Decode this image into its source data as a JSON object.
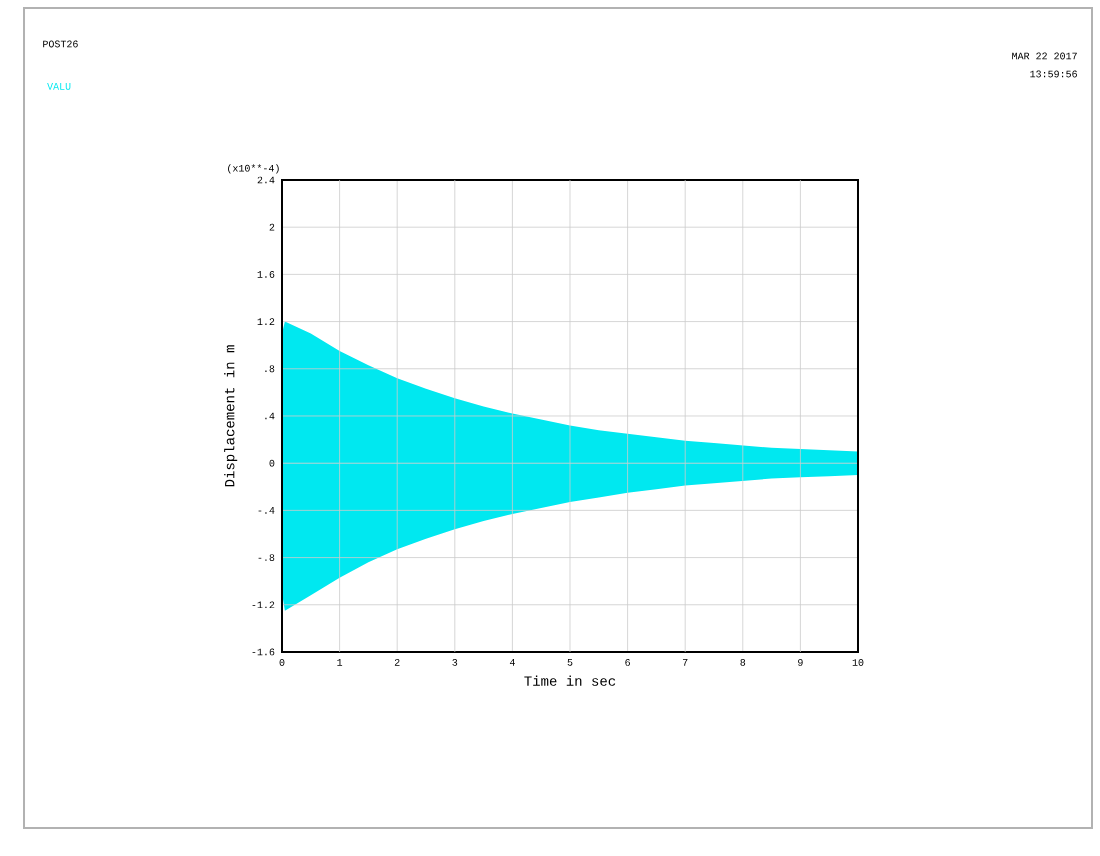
{
  "chart_data": {
    "type": "area",
    "xlabel": "Time in sec",
    "ylabel": "Displacement in m",
    "x": [
      0,
      0.05,
      0.5,
      1,
      1.5,
      2,
      2.5,
      3,
      3.5,
      4,
      4.5,
      5,
      5.5,
      6,
      6.5,
      7,
      7.5,
      8,
      8.5,
      9,
      9.5,
      10
    ],
    "series": [
      {
        "name": "VALU",
        "color": "#00e8f0",
        "values": [
          1.1,
          1.2,
          1.1,
          0.95,
          0.83,
          0.72,
          0.63,
          0.55,
          0.48,
          0.42,
          0.37,
          0.32,
          0.28,
          0.25,
          0.22,
          0.19,
          0.17,
          0.15,
          0.13,
          0.12,
          0.11,
          0.1
        ]
      },
      {
        "color": "#00e8f0",
        "values": [
          -1.1,
          -1.25,
          -1.12,
          -0.97,
          -0.84,
          -0.73,
          -0.64,
          -0.56,
          -0.49,
          -0.43,
          -0.38,
          -0.33,
          -0.29,
          -0.25,
          -0.22,
          -0.19,
          -0.17,
          -0.15,
          -0.13,
          -0.12,
          -0.11,
          -0.1
        ]
      }
    ],
    "xlim": [
      0,
      10
    ],
    "ylim": [
      -1.6,
      2.4
    ],
    "xticks": [
      0,
      1,
      2,
      3,
      4,
      5,
      6,
      7,
      8,
      9,
      10
    ],
    "yticks": [
      -1.6,
      -1.2,
      {
        "value": -0.8,
        "label": "-.8"
      },
      {
        "value": -0.4,
        "label": "-.4"
      },
      0,
      {
        "value": 0.4,
        "label": ".4"
      },
      {
        "value": 0.8,
        "label": ".8"
      },
      1.2,
      1.6,
      2,
      2.4
    ],
    "grid": true,
    "legend": "top left",
    "annotations": [
      "(x10**-4)",
      "POST26",
      "MAR 22 2017",
      "13:59:56"
    ]
  }
}
